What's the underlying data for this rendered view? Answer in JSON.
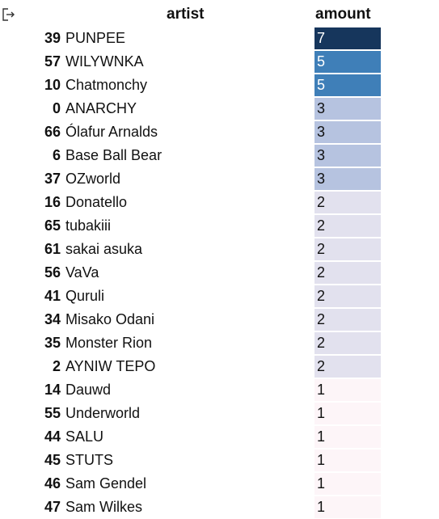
{
  "toolbar": {
    "export_icon": "export-icon"
  },
  "table": {
    "columns": {
      "artist": "artist",
      "amount": "amount"
    },
    "rows": [
      {
        "index": "39",
        "artist": "PUNPEE",
        "amount": "7",
        "bg": "#16365c",
        "fg": "#ffffff"
      },
      {
        "index": "57",
        "artist": "WILYWNKA",
        "amount": "5",
        "bg": "#3f7fb8",
        "fg": "#ffffff"
      },
      {
        "index": "10",
        "artist": "Chatmonchy",
        "amount": "5",
        "bg": "#3f7fb8",
        "fg": "#ffffff"
      },
      {
        "index": "0",
        "artist": "ANARCHY",
        "amount": "3",
        "bg": "#b6c3e0",
        "fg": "#111111"
      },
      {
        "index": "66",
        "artist": "Ólafur Arnalds",
        "amount": "3",
        "bg": "#b6c3e0",
        "fg": "#111111"
      },
      {
        "index": "6",
        "artist": "Base Ball Bear",
        "amount": "3",
        "bg": "#b6c3e0",
        "fg": "#111111"
      },
      {
        "index": "37",
        "artist": "OZworld",
        "amount": "3",
        "bg": "#b6c3e0",
        "fg": "#111111"
      },
      {
        "index": "16",
        "artist": "Donatello",
        "amount": "2",
        "bg": "#e2e1ee",
        "fg": "#111111"
      },
      {
        "index": "65",
        "artist": "tubakiii",
        "amount": "2",
        "bg": "#e2e1ee",
        "fg": "#111111"
      },
      {
        "index": "61",
        "artist": "sakai asuka",
        "amount": "2",
        "bg": "#e2e1ee",
        "fg": "#111111"
      },
      {
        "index": "56",
        "artist": "VaVa",
        "amount": "2",
        "bg": "#e2e1ee",
        "fg": "#111111"
      },
      {
        "index": "41",
        "artist": "Quruli",
        "amount": "2",
        "bg": "#e2e1ee",
        "fg": "#111111"
      },
      {
        "index": "34",
        "artist": "Misako Odani",
        "amount": "2",
        "bg": "#e2e1ee",
        "fg": "#111111"
      },
      {
        "index": "35",
        "artist": "Monster Rion",
        "amount": "2",
        "bg": "#e2e1ee",
        "fg": "#111111"
      },
      {
        "index": "2",
        "artist": "AYNIW TEPO",
        "amount": "2",
        "bg": "#e2e1ee",
        "fg": "#111111"
      },
      {
        "index": "14",
        "artist": "Dauwd",
        "amount": "1",
        "bg": "#fdf5f8",
        "fg": "#111111"
      },
      {
        "index": "55",
        "artist": "Underworld",
        "amount": "1",
        "bg": "#fdf5f8",
        "fg": "#111111"
      },
      {
        "index": "44",
        "artist": "SALU",
        "amount": "1",
        "bg": "#fdf5f8",
        "fg": "#111111"
      },
      {
        "index": "45",
        "artist": "STUTS",
        "amount": "1",
        "bg": "#fdf5f8",
        "fg": "#111111"
      },
      {
        "index": "46",
        "artist": "Sam Gendel",
        "amount": "1",
        "bg": "#fdf5f8",
        "fg": "#111111"
      },
      {
        "index": "47",
        "artist": "Sam Wilkes",
        "amount": "1",
        "bg": "#fdf5f8",
        "fg": "#111111"
      }
    ]
  }
}
